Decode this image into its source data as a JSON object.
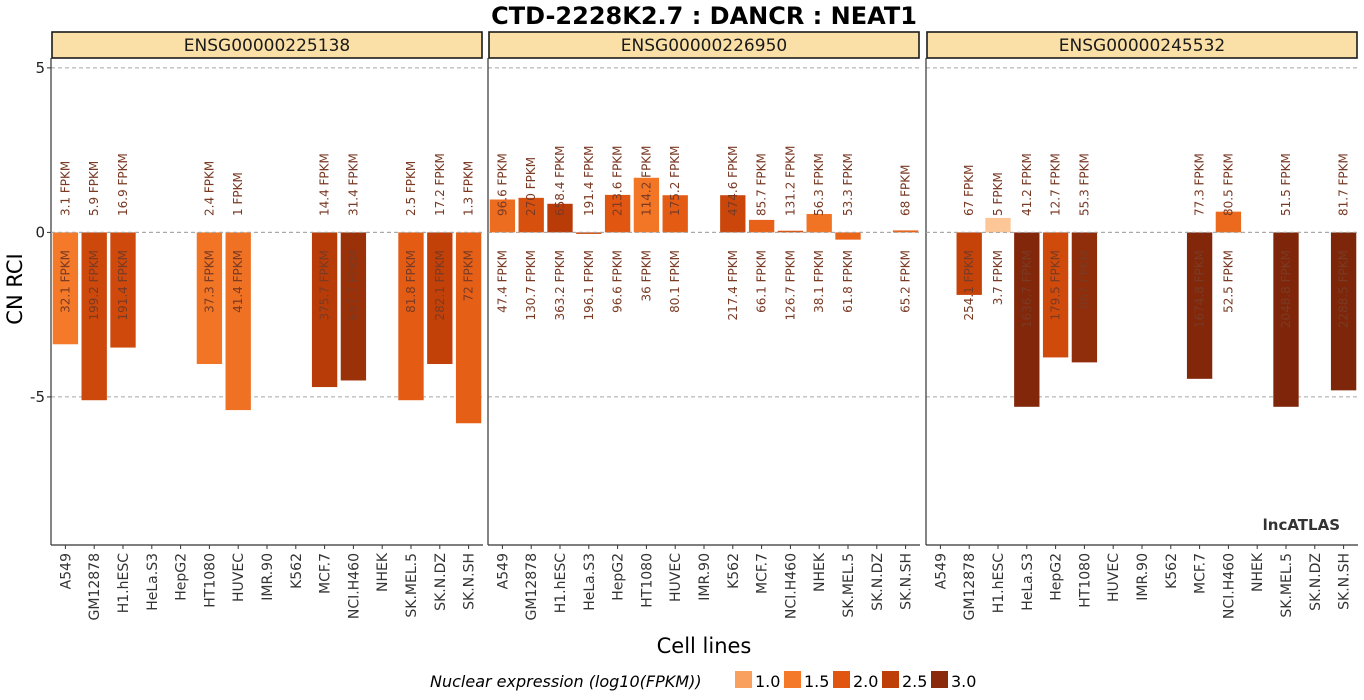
{
  "chart_data": {
    "type": "bar",
    "title": "CTD-2228K2.7 : DANCR : NEAT1",
    "xlabel": "Cell lines",
    "ylabel": "CN RCI",
    "ylim": [
      -9.5,
      5.3
    ],
    "yticks": [
      5,
      0,
      -5
    ],
    "grid": "dashed horizontal at y ticks",
    "watermark": "lncATLAS",
    "categories": [
      "A549",
      "GM12878",
      "H1.hESC",
      "HeLa.S3",
      "HepG2",
      "HT1080",
      "HUVEC",
      "IMR.90",
      "K562",
      "MCF.7",
      "NCI.H460",
      "NHEK",
      "SK.MEL.5",
      "SK.N.DZ",
      "SK.N.SH"
    ],
    "legend": {
      "title": "Nuclear expression (log10(FPKM))",
      "position": "bottom",
      "entries": [
        {
          "label": "1.0",
          "color": "#f9a05e"
        },
        {
          "label": "1.5",
          "color": "#f47a29"
        },
        {
          "label": "2.0",
          "color": "#e0550f"
        },
        {
          "label": "2.5",
          "color": "#bf3f08"
        },
        {
          "label": "3.0",
          "color": "#8a2a0a"
        }
      ]
    },
    "panels": [
      {
        "name": "ENSG00000225138",
        "bars": [
          {
            "cell": "A549",
            "value": -3.4,
            "top_label": "3.1 FPKM",
            "bottom_label": "32.1 FPKM",
            "log_nuc": 1.51
          },
          {
            "cell": "GM12878",
            "value": -5.1,
            "top_label": "5.9 FPKM",
            "bottom_label": "199.2 FPKM",
            "log_nuc": 2.3
          },
          {
            "cell": "H1.hESC",
            "value": -3.5,
            "top_label": "16.9 FPKM",
            "bottom_label": "191.4 FPKM",
            "log_nuc": 2.28
          },
          {
            "cell": "HeLa.S3",
            "value": null,
            "top_label": "",
            "bottom_label": "",
            "log_nuc": null
          },
          {
            "cell": "HepG2",
            "value": null,
            "top_label": "",
            "bottom_label": "",
            "log_nuc": null
          },
          {
            "cell": "HT1080",
            "value": -4.0,
            "top_label": "2.4 FPKM",
            "bottom_label": "37.3 FPKM",
            "log_nuc": 1.57
          },
          {
            "cell": "HUVEC",
            "value": -5.4,
            "top_label": "1 FPKM",
            "bottom_label": "41.4 FPKM",
            "log_nuc": 1.62
          },
          {
            "cell": "IMR.90",
            "value": null,
            "top_label": "",
            "bottom_label": "",
            "log_nuc": null
          },
          {
            "cell": "K562",
            "value": null,
            "top_label": "",
            "bottom_label": "",
            "log_nuc": null
          },
          {
            "cell": "MCF.7",
            "value": -4.7,
            "top_label": "14.4 FPKM",
            "bottom_label": "375.7 FPKM",
            "log_nuc": 2.57
          },
          {
            "cell": "NCI.H460",
            "value": -4.5,
            "top_label": "31.4 FPKM",
            "bottom_label": "697.7 FPKM",
            "log_nuc": 2.84
          },
          {
            "cell": "NHEK",
            "value": null,
            "top_label": "",
            "bottom_label": "",
            "log_nuc": null
          },
          {
            "cell": "SK.MEL.5",
            "value": -5.1,
            "top_label": "2.5 FPKM",
            "bottom_label": "81.8 FPKM",
            "log_nuc": 1.91
          },
          {
            "cell": "SK.N.DZ",
            "value": -4.0,
            "top_label": "17.2 FPKM",
            "bottom_label": "282.1 FPKM",
            "log_nuc": 2.45
          },
          {
            "cell": "SK.N.SH",
            "value": -5.8,
            "top_label": "1.3 FPKM",
            "bottom_label": "72 FPKM",
            "log_nuc": 1.86
          }
        ]
      },
      {
        "name": "ENSG00000226950",
        "bars": [
          {
            "cell": "A549",
            "value": 1.0,
            "top_label": "96.6 FPKM",
            "bottom_label": "47.4 FPKM",
            "log_nuc": 1.68
          },
          {
            "cell": "GM12878",
            "value": 1.05,
            "top_label": "270 FPKM",
            "bottom_label": "130.7 FPKM",
            "log_nuc": 2.12
          },
          {
            "cell": "H1.hESC",
            "value": 0.87,
            "top_label": "658.4 FPKM",
            "bottom_label": "363.2 FPKM",
            "log_nuc": 2.56
          },
          {
            "cell": "HeLa.S3",
            "value": -0.03,
            "top_label": "191.4 FPKM",
            "bottom_label": "196.1 FPKM",
            "log_nuc": 2.29
          },
          {
            "cell": "HepG2",
            "value": 1.14,
            "top_label": "213.6 FPKM",
            "bottom_label": "96.6 FPKM",
            "log_nuc": 1.98
          },
          {
            "cell": "HT1080",
            "value": 1.66,
            "top_label": "114.2 FPKM",
            "bottom_label": "36 FPKM",
            "log_nuc": 1.56
          },
          {
            "cell": "HUVEC",
            "value": 1.13,
            "top_label": "175.2 FPKM",
            "bottom_label": "80.1 FPKM",
            "log_nuc": 1.9
          },
          {
            "cell": "IMR.90",
            "value": null,
            "top_label": "",
            "bottom_label": "",
            "log_nuc": null
          },
          {
            "cell": "K562",
            "value": 1.13,
            "top_label": "474.6 FPKM",
            "bottom_label": "217.4 FPKM",
            "log_nuc": 2.34
          },
          {
            "cell": "MCF.7",
            "value": 0.38,
            "top_label": "85.7 FPKM",
            "bottom_label": "66.1 FPKM",
            "log_nuc": 1.82
          },
          {
            "cell": "NCI.H460",
            "value": 0.05,
            "top_label": "131.2 FPKM",
            "bottom_label": "126.7 FPKM",
            "log_nuc": 2.1
          },
          {
            "cell": "NHEK",
            "value": 0.56,
            "top_label": "56.3 FPKM",
            "bottom_label": "38.1 FPKM",
            "log_nuc": 1.58
          },
          {
            "cell": "SK.MEL.5",
            "value": -0.22,
            "top_label": "53.3 FPKM",
            "bottom_label": "61.8 FPKM",
            "log_nuc": 1.79
          },
          {
            "cell": "SK.N.DZ",
            "value": null,
            "top_label": "",
            "bottom_label": "",
            "log_nuc": null
          },
          {
            "cell": "SK.N.SH",
            "value": 0.06,
            "top_label": "68 FPKM",
            "bottom_label": "65.2 FPKM",
            "log_nuc": 1.81
          }
        ]
      },
      {
        "name": "ENSG00000245532",
        "bars": [
          {
            "cell": "A549",
            "value": null,
            "top_label": "",
            "bottom_label": "",
            "log_nuc": null
          },
          {
            "cell": "GM12878",
            "value": -1.9,
            "top_label": "67 FPKM",
            "bottom_label": "254.1 FPKM",
            "log_nuc": 2.41
          },
          {
            "cell": "H1.hESC",
            "value": 0.44,
            "top_label": "5 FPKM",
            "bottom_label": "3.7 FPKM",
            "log_nuc": 0.57
          },
          {
            "cell": "HeLa.S3",
            "value": -5.3,
            "top_label": "41.2 FPKM",
            "bottom_label": "1636.7 FPKM",
            "log_nuc": 3.21
          },
          {
            "cell": "HepG2",
            "value": -3.8,
            "top_label": "12.7 FPKM",
            "bottom_label": "179.5 FPKM",
            "log_nuc": 2.25
          },
          {
            "cell": "HT1080",
            "value": -3.95,
            "top_label": "55.3 FPKM",
            "bottom_label": "867 FPKM",
            "log_nuc": 2.94
          },
          {
            "cell": "HUVEC",
            "value": null,
            "top_label": "",
            "bottom_label": "",
            "log_nuc": null
          },
          {
            "cell": "IMR.90",
            "value": null,
            "top_label": "",
            "bottom_label": "",
            "log_nuc": null
          },
          {
            "cell": "K562",
            "value": null,
            "top_label": "",
            "bottom_label": "",
            "log_nuc": null
          },
          {
            "cell": "MCF.7",
            "value": -4.45,
            "top_label": "77.3 FPKM",
            "bottom_label": "1674.8 FPKM",
            "log_nuc": 3.22
          },
          {
            "cell": "NCI.H460",
            "value": 0.63,
            "top_label": "80.5 FPKM",
            "bottom_label": "52.5 FPKM",
            "log_nuc": 1.72
          },
          {
            "cell": "NHEK",
            "value": null,
            "top_label": "",
            "bottom_label": "",
            "log_nuc": null
          },
          {
            "cell": "SK.MEL.5",
            "value": -5.3,
            "top_label": "51.5 FPKM",
            "bottom_label": "2048.8 FPKM",
            "log_nuc": 3.31
          },
          {
            "cell": "SK.N.DZ",
            "value": null,
            "top_label": "",
            "bottom_label": "",
            "log_nuc": null
          },
          {
            "cell": "SK.N.SH",
            "value": -4.8,
            "top_label": "81.7 FPKM",
            "bottom_label": "2288.5 FPKM",
            "log_nuc": 3.36
          }
        ]
      }
    ]
  }
}
